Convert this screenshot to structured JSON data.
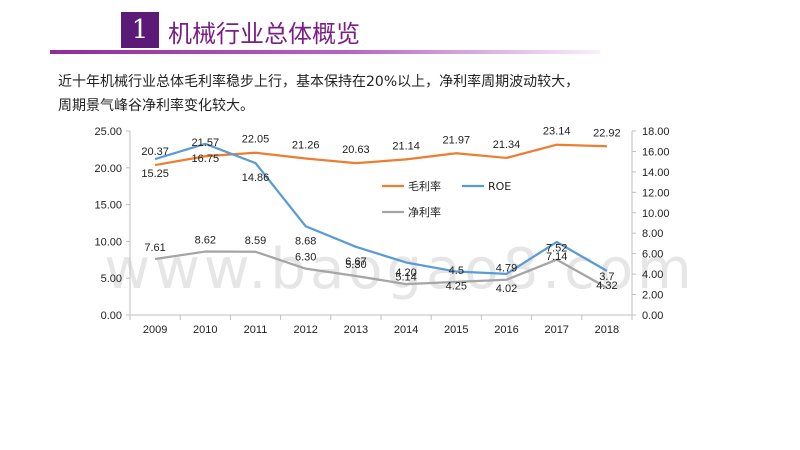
{
  "slide": {
    "number": "1",
    "title": "机械行业总体概览",
    "intro_lines": [
      "近十年机械行业总体毛利率稳步上行，基本保持在20%以上，净利率周期波动较大，",
      "周期景气峰谷净利率变化较大。"
    ],
    "accent_color": "#5b1a78"
  },
  "watermark": "www.baogao8.com",
  "chart_data": {
    "type": "line",
    "categories": [
      "2009",
      "2010",
      "2011",
      "2012",
      "2013",
      "2014",
      "2015",
      "2016",
      "2017",
      "2018"
    ],
    "y_left": {
      "min": 0,
      "max": 25,
      "ticks": [
        "0.00",
        "5.00",
        "10.00",
        "15.00",
        "20.00",
        "25.00"
      ]
    },
    "y_right": {
      "min": 0,
      "max": 18,
      "ticks": [
        "0.00",
        "2.00",
        "4.00",
        "6.00",
        "8.00",
        "10.00",
        "12.00",
        "14.00",
        "16.00",
        "18.00"
      ]
    },
    "grid": false,
    "legend_position": "upper-right",
    "series": [
      {
        "name": "毛利率",
        "axis": "left",
        "color": "#ed7d31",
        "values": [
          20.37,
          21.57,
          22.05,
          21.26,
          20.63,
          21.14,
          21.97,
          21.34,
          23.14,
          22.92
        ],
        "labels": [
          "20.37",
          "21.57",
          "22.05",
          "21.26",
          "20.63",
          "21.14",
          "21.97",
          "21.34",
          "23.14",
          "22.92"
        ]
      },
      {
        "name": "ROE",
        "axis": "right",
        "color": "#5b9bd5",
        "values": [
          15.25,
          16.75,
          14.86,
          8.68,
          6.67,
          5.14,
          4.25,
          4.02,
          7.14,
          4.32
        ],
        "labels": [
          "15.25",
          "16.75",
          "14.86",
          "8.68",
          "6.67",
          "5.14",
          "4.25",
          "4.02",
          "7.14",
          "4.32"
        ]
      },
      {
        "name": "净利率",
        "axis": "left",
        "color": "#a5a5a5",
        "values": [
          7.61,
          8.62,
          8.59,
          6.3,
          5.3,
          4.2,
          4.5,
          4.79,
          7.52,
          3.7
        ],
        "labels": [
          "7.61",
          "8.62",
          "8.59",
          "6.30",
          "5.30",
          "4.20",
          "4.5",
          "4.79",
          "7.52",
          "3.7"
        ]
      }
    ]
  }
}
